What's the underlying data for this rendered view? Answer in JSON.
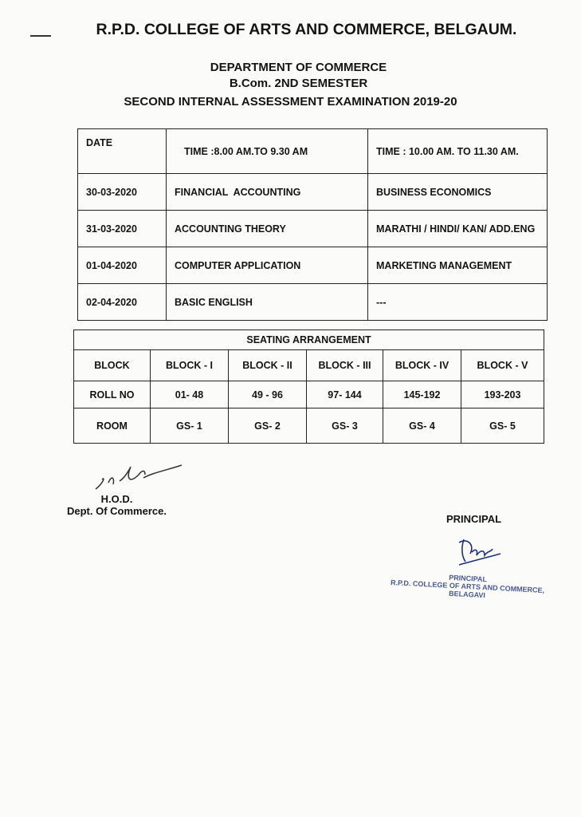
{
  "header": {
    "college": "R.P.D. COLLEGE OF ARTS AND COMMERCE, BELGAUM.",
    "department": "DEPARTMENT OF COMMERCE",
    "semester": "B.Com. 2ND SEMESTER",
    "exam": "SECOND INTERNAL ASSESSMENT EXAMINATION 2019-20"
  },
  "schedule": {
    "headers": [
      "DATE",
      "TIME :8.00 AM.TO 9.30 AM",
      "TIME : 10.00 AM. TO 11.30 AM."
    ],
    "rows": [
      [
        "30-03-2020",
        "FINANCIAL  ACCOUNTING",
        "BUSINESS ECONOMICS"
      ],
      [
        "31-03-2020",
        "ACCOUNTING THEORY",
        "MARATHI / HINDI/ KAN/ ADD.ENG"
      ],
      [
        "01-04-2020",
        "COMPUTER APPLICATION",
        "MARKETING MANAGEMENT"
      ],
      [
        "02-04-2020",
        "BASIC ENGLISH",
        "---"
      ]
    ]
  },
  "seating": {
    "title": "SEATING ARRANGEMENT",
    "rows": [
      [
        "BLOCK",
        "BLOCK - I",
        "BLOCK - II",
        "BLOCK - III",
        "BLOCK - IV",
        "BLOCK - V"
      ],
      [
        "ROLL NO",
        "01- 48",
        "49 - 96",
        "97- 144",
        "145-192",
        "193-203"
      ],
      [
        "ROOM",
        "GS- 1",
        "GS- 2",
        "GS- 3",
        "GS- 4",
        "GS- 5"
      ]
    ]
  },
  "signatures": {
    "hod_title": "H.O.D.",
    "hod_dept": "Dept. Of Commerce.",
    "principal": "PRINCIPAL",
    "stamp": [
      "PRINCIPAL",
      "R.P.D. COLLEGE OF ARTS AND COMMERCE,",
      "BELAGAVI"
    ]
  },
  "colors": {
    "ink": "#141414",
    "stamp": "#2a3a8a",
    "paper": "#fbfbf9"
  }
}
